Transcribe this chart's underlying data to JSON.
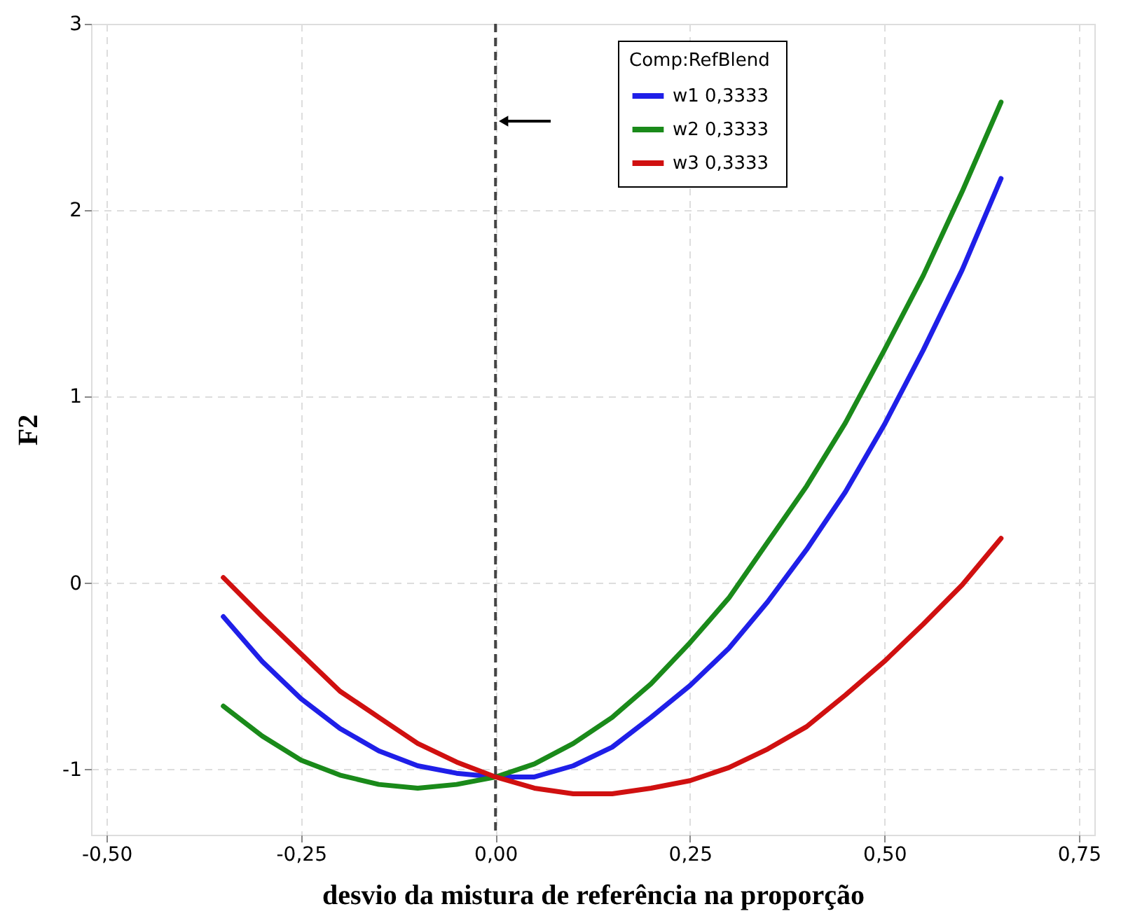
{
  "chart_data": {
    "type": "line",
    "xlabel": "desvio da mistura de referência na proporção",
    "ylabel": "F2",
    "legend_title": "Comp:RefBlend",
    "x": [
      -0.35,
      -0.3,
      -0.25,
      -0.2,
      -0.15,
      -0.1,
      -0.05,
      0,
      0.05,
      0.1,
      0.15,
      0.2,
      0.25,
      0.3,
      0.35,
      0.4,
      0.45,
      0.5,
      0.55,
      0.6,
      0.65
    ],
    "series": [
      {
        "name": "w1  0,3333",
        "color": "#1f1fe8",
        "values": [
          -0.18,
          -0.42,
          -0.62,
          -0.78,
          -0.9,
          -0.98,
          -1.02,
          -1.04,
          -1.04,
          -0.98,
          -0.88,
          -0.72,
          -0.55,
          -0.35,
          -0.1,
          0.18,
          0.49,
          0.85,
          1.25,
          1.68,
          2.17
        ]
      },
      {
        "name": "w2  0,3333",
        "color": "#1a8a1a",
        "values": [
          -0.66,
          -0.82,
          -0.95,
          -1.03,
          -1.08,
          -1.1,
          -1.08,
          -1.04,
          -0.97,
          -0.86,
          -0.72,
          -0.54,
          -0.32,
          -0.08,
          0.22,
          0.52,
          0.86,
          1.25,
          1.65,
          2.1,
          2.58
        ]
      },
      {
        "name": "w3  0,3333",
        "color": "#d01010",
        "values": [
          0.03,
          -0.18,
          -0.38,
          -0.58,
          -0.72,
          -0.86,
          -0.96,
          -1.04,
          -1.1,
          -1.13,
          -1.13,
          -1.1,
          -1.06,
          -0.99,
          -0.89,
          -0.77,
          -0.6,
          -0.42,
          -0.22,
          -0.01,
          0.24
        ]
      }
    ],
    "xlim": [
      -0.52,
      0.77
    ],
    "xticks": [
      {
        "value": -0.5,
        "label": "-0,50"
      },
      {
        "value": -0.25,
        "label": "-0,25"
      },
      {
        "value": 0,
        "label": "0,00"
      },
      {
        "value": 0.25,
        "label": "0,25"
      },
      {
        "value": 0.5,
        "label": "0,50"
      },
      {
        "value": 0.75,
        "label": "0,75"
      }
    ],
    "ylim": [
      -1.35,
      3.0
    ],
    "yticks": [
      -1,
      0,
      1,
      2,
      3
    ],
    "grid": true,
    "legend": "top",
    "ref_lines": [
      {
        "axis": "x",
        "value": 0,
        "color": "#444444",
        "line_style": "dashed"
      }
    ]
  }
}
